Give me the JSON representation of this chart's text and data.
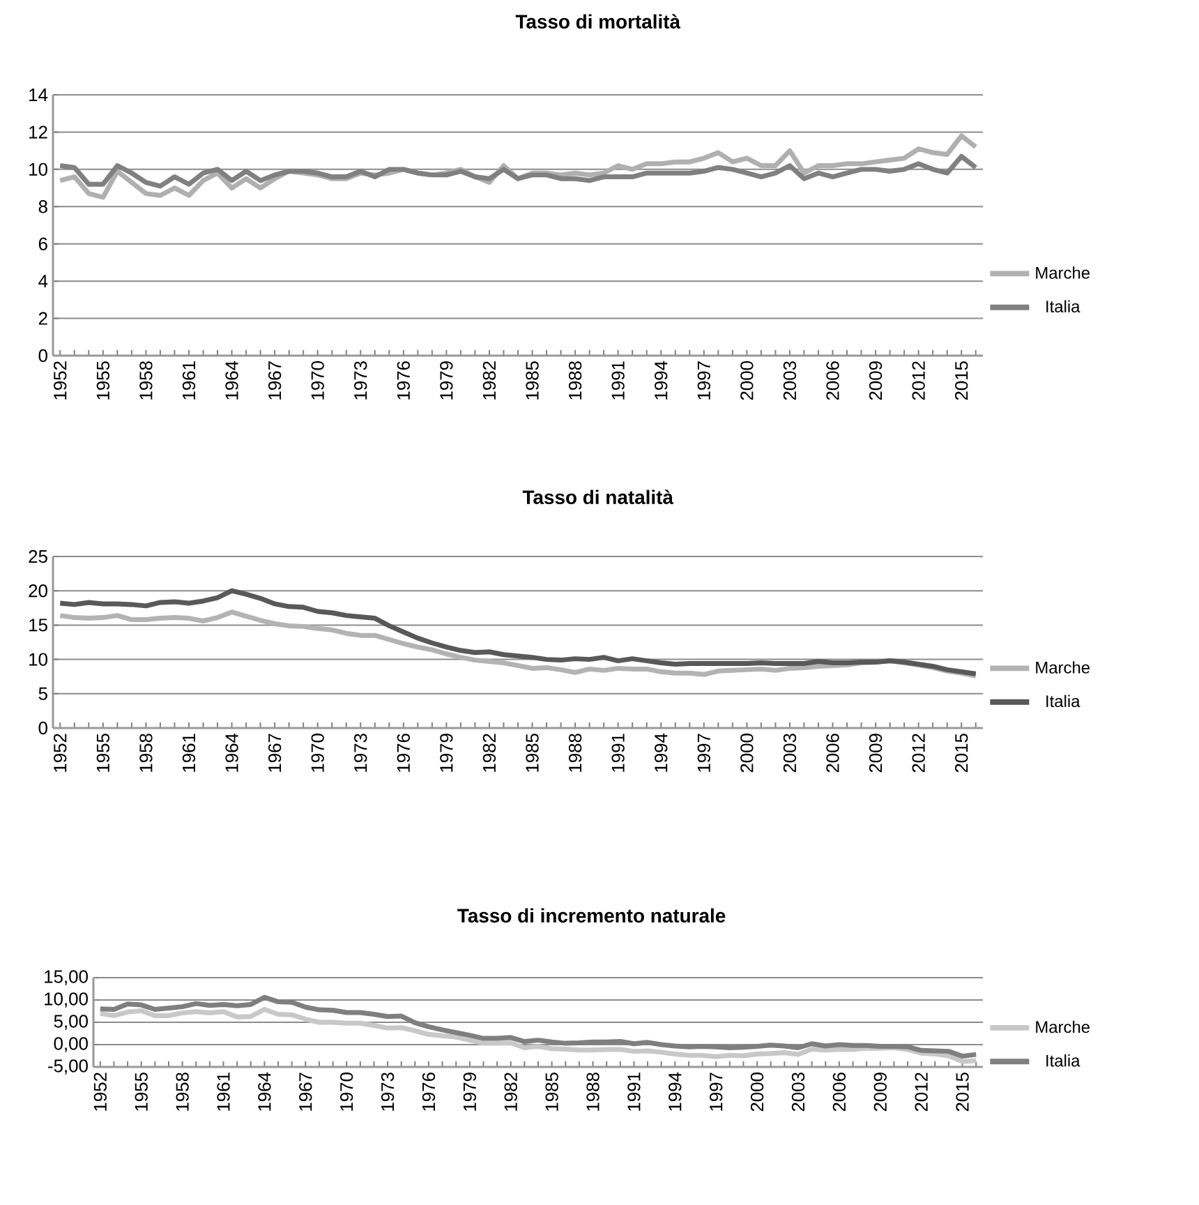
{
  "chart_data": [
    {
      "type": "line",
      "title": "Tasso di mortalità",
      "categories": [
        "1952",
        null,
        null,
        "1955",
        null,
        null,
        "1958",
        null,
        null,
        "1961",
        null,
        null,
        "1964",
        null,
        null,
        "1967",
        null,
        null,
        "1970",
        null,
        null,
        "1973",
        null,
        null,
        "1976",
        null,
        null,
        "1979",
        null,
        null,
        "1982",
        null,
        null,
        "1985",
        null,
        null,
        "1988",
        null,
        null,
        "1991",
        null,
        null,
        "1994",
        null,
        null,
        "1997",
        null,
        null,
        "2000",
        null,
        null,
        "2003",
        null,
        null,
        "2006",
        null,
        null,
        "2009",
        null,
        null,
        "2012",
        null,
        null,
        "2015",
        null
      ],
      "series": [
        {
          "name": "Marche",
          "color": "#b0b0b0",
          "values": [
            9.4,
            9.6,
            8.7,
            8.5,
            9.9,
            9.3,
            8.7,
            8.6,
            9.0,
            8.6,
            9.4,
            9.8,
            9.0,
            9.5,
            9.0,
            9.5,
            9.9,
            9.8,
            9.7,
            9.5,
            9.5,
            9.8,
            9.7,
            9.8,
            10.0,
            9.8,
            9.7,
            9.8,
            10.0,
            9.6,
            9.3,
            10.2,
            9.5,
            9.8,
            9.8,
            9.7,
            9.8,
            9.7,
            9.8,
            10.2,
            10.0,
            10.3,
            10.3,
            10.4,
            10.4,
            10.6,
            10.9,
            10.4,
            10.6,
            10.2,
            10.2,
            11.0,
            9.8,
            10.2,
            10.2,
            10.3,
            10.3,
            10.4,
            10.5,
            10.6,
            11.1,
            10.9,
            10.8,
            11.8,
            11.2
          ]
        },
        {
          "name": "Italia",
          "color": "#808080",
          "values": [
            10.2,
            10.1,
            9.2,
            9.2,
            10.2,
            9.8,
            9.3,
            9.1,
            9.6,
            9.2,
            9.8,
            10.0,
            9.4,
            9.9,
            9.4,
            9.7,
            9.9,
            9.9,
            9.8,
            9.6,
            9.6,
            9.9,
            9.6,
            10.0,
            10.0,
            9.8,
            9.7,
            9.7,
            9.9,
            9.6,
            9.5,
            10.0,
            9.5,
            9.7,
            9.7,
            9.5,
            9.5,
            9.4,
            9.6,
            9.6,
            9.6,
            9.8,
            9.8,
            9.8,
            9.8,
            9.9,
            10.1,
            10.0,
            9.8,
            9.6,
            9.8,
            10.2,
            9.5,
            9.8,
            9.6,
            9.8,
            10.0,
            10.0,
            9.9,
            10.0,
            10.3,
            10.0,
            9.8,
            10.7,
            10.1
          ]
        }
      ],
      "ylim": [
        0,
        14
      ],
      "yticks": [
        0,
        2,
        4,
        6,
        8,
        10,
        12,
        14
      ],
      "grid": "y",
      "legend": "right"
    },
    {
      "type": "line",
      "title": "Tasso di natalità",
      "categories": [
        "1952",
        null,
        null,
        "1955",
        null,
        null,
        "1958",
        null,
        null,
        "1961",
        null,
        null,
        "1964",
        null,
        null,
        "1967",
        null,
        null,
        "1970",
        null,
        null,
        "1973",
        null,
        null,
        "1976",
        null,
        null,
        "1979",
        null,
        null,
        "1982",
        null,
        null,
        "1985",
        null,
        null,
        "1988",
        null,
        null,
        "1991",
        null,
        null,
        "1994",
        null,
        null,
        "1997",
        null,
        null,
        "2000",
        null,
        null,
        "2003",
        null,
        null,
        "2006",
        null,
        null,
        "2009",
        null,
        null,
        "2012",
        null,
        null,
        "2015",
        null
      ],
      "series": [
        {
          "name": "Marche",
          "color": "#b3b3b3",
          "values": [
            16.4,
            16.1,
            16.0,
            16.1,
            16.4,
            15.8,
            15.8,
            16.0,
            16.1,
            16.0,
            15.6,
            16.1,
            16.9,
            16.3,
            15.7,
            15.2,
            14.9,
            14.8,
            14.5,
            14.3,
            13.8,
            13.5,
            13.5,
            12.9,
            12.3,
            11.8,
            11.4,
            10.8,
            10.3,
            9.9,
            9.7,
            9.5,
            9.1,
            8.7,
            8.8,
            8.5,
            8.1,
            8.6,
            8.4,
            8.7,
            8.6,
            8.6,
            8.2,
            8.0,
            8.0,
            7.8,
            8.3,
            8.4,
            8.5,
            8.6,
            8.4,
            8.7,
            8.8,
            9.0,
            9.1,
            9.2,
            9.5,
            9.6,
            9.8,
            9.5,
            9.2,
            8.8,
            8.3,
            8.0,
            7.6
          ]
        },
        {
          "name": "Italia",
          "color": "#595959",
          "values": [
            18.2,
            18.0,
            18.3,
            18.1,
            18.1,
            18.0,
            17.8,
            18.3,
            18.4,
            18.2,
            18.5,
            19.0,
            20.0,
            19.5,
            18.9,
            18.1,
            17.7,
            17.6,
            17.0,
            16.8,
            16.4,
            16.2,
            16.0,
            14.9,
            14.0,
            13.1,
            12.4,
            11.8,
            11.3,
            11.0,
            11.1,
            10.7,
            10.5,
            10.3,
            10.0,
            9.9,
            10.1,
            10.0,
            10.3,
            9.8,
            10.1,
            9.8,
            9.5,
            9.3,
            9.4,
            9.4,
            9.4,
            9.4,
            9.4,
            9.5,
            9.4,
            9.4,
            9.4,
            9.7,
            9.5,
            9.5,
            9.6,
            9.6,
            9.8,
            9.6,
            9.3,
            9.0,
            8.5,
            8.2,
            7.9
          ]
        }
      ],
      "ylim": [
        0,
        25
      ],
      "yticks": [
        0,
        5,
        10,
        15,
        20,
        25
      ],
      "grid": "y",
      "legend": "right"
    },
    {
      "type": "line",
      "title": "Tasso di incremento naturale",
      "categories": [
        "1952",
        null,
        null,
        "1955",
        null,
        null,
        "1958",
        null,
        null,
        "1961",
        null,
        null,
        "1964",
        null,
        null,
        "1967",
        null,
        null,
        "1970",
        null,
        null,
        "1973",
        null,
        null,
        "1976",
        null,
        null,
        "1979",
        null,
        null,
        "1982",
        null,
        null,
        "1985",
        null,
        null,
        "1988",
        null,
        null,
        "1991",
        null,
        null,
        "1994",
        null,
        null,
        "1997",
        null,
        null,
        "2000",
        null,
        null,
        "2003",
        null,
        null,
        "2006",
        null,
        null,
        "2009",
        null,
        null,
        "2012",
        null,
        null,
        "2015",
        null
      ],
      "series": [
        {
          "name": "Marche",
          "color": "#c8c8c8",
          "values": [
            7.0,
            6.5,
            7.3,
            7.6,
            6.5,
            6.5,
            7.1,
            7.4,
            7.1,
            7.4,
            6.2,
            6.3,
            7.9,
            6.8,
            6.7,
            5.7,
            5.0,
            5.0,
            4.8,
            4.8,
            4.3,
            3.7,
            3.8,
            3.1,
            2.3,
            2.0,
            1.7,
            1.0,
            0.3,
            0.3,
            0.4,
            -0.7,
            -0.4,
            -0.9,
            -1.0,
            -1.2,
            -1.2,
            -1.1,
            -1.1,
            -1.5,
            -1.4,
            -1.7,
            -2.1,
            -2.4,
            -2.4,
            -2.7,
            -2.4,
            -2.5,
            -2.1,
            -2.0,
            -1.8,
            -2.2,
            -1.0,
            -1.2,
            -1.1,
            -1.1,
            -0.8,
            -0.8,
            -0.7,
            -1.1,
            -1.9,
            -2.1,
            -2.5,
            -3.8,
            -3.6
          ]
        },
        {
          "name": "Italia",
          "color": "#7f7f7f",
          "values": [
            8.0,
            7.9,
            9.1,
            8.9,
            7.9,
            8.2,
            8.5,
            9.2,
            8.8,
            9.0,
            8.7,
            9.0,
            10.6,
            9.6,
            9.5,
            8.4,
            7.8,
            7.7,
            7.2,
            7.2,
            6.8,
            6.3,
            6.4,
            4.9,
            4.0,
            3.3,
            2.7,
            2.1,
            1.4,
            1.4,
            1.6,
            0.7,
            1.0,
            0.6,
            0.3,
            0.4,
            0.6,
            0.6,
            0.7,
            0.2,
            0.5,
            0.0,
            -0.3,
            -0.5,
            -0.4,
            -0.5,
            -0.7,
            -0.6,
            -0.4,
            -0.1,
            -0.3,
            -0.7,
            0.2,
            -0.3,
            0.0,
            -0.2,
            -0.2,
            -0.4,
            -0.4,
            -0.5,
            -1.3,
            -1.4,
            -1.5,
            -2.6,
            -2.2
          ]
        }
      ],
      "ylim": [
        -5,
        15
      ],
      "yticks": [
        {
          "value": -5,
          "label": "-5,00"
        },
        {
          "value": 0,
          "label": "0,00"
        },
        {
          "value": 5,
          "label": "5,00"
        },
        {
          "value": 10,
          "label": "10,00"
        },
        {
          "value": 15,
          "label": "15,00"
        }
      ],
      "grid": "y",
      "legend": "right"
    }
  ]
}
